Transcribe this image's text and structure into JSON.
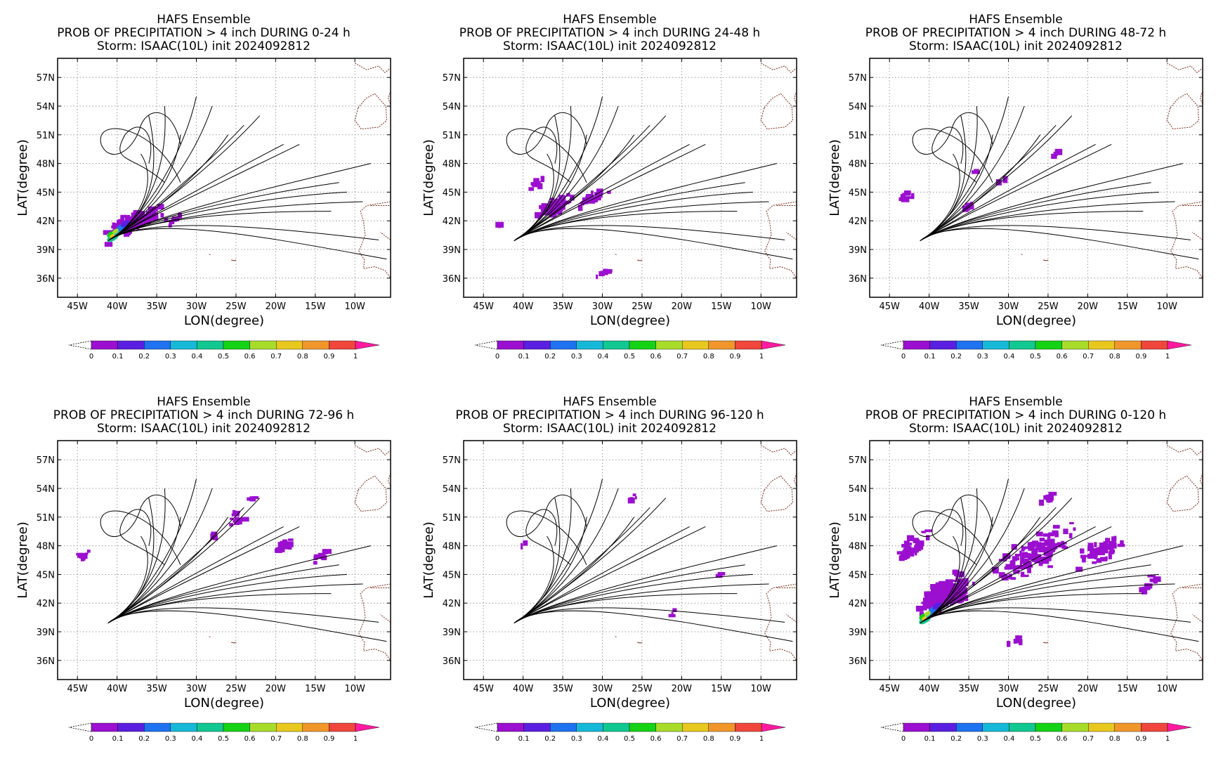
{
  "figure": {
    "model": "HAFS Ensemble",
    "storm_line": "Storm: ISAAC(10L) init 2024092812",
    "xlabel": "LON(degree)",
    "ylabel": "LAT(degree)"
  },
  "panels": [
    {
      "title": "HAFS Ensemble",
      "subtitle": "PROB OF PRECIPITATION > 4 inch DURING  0-24 h",
      "storm": "Storm: ISAAC(10L) init 2024092812",
      "period": "0-24"
    },
    {
      "title": "HAFS Ensemble",
      "subtitle": "PROB OF PRECIPITATION > 4 inch DURING 24-48 h",
      "storm": "Storm: ISAAC(10L) init 2024092812",
      "period": "24-48"
    },
    {
      "title": "HAFS Ensemble",
      "subtitle": "PROB OF PRECIPITATION > 4 inch DURING 48-72 h",
      "storm": "Storm: ISAAC(10L) init 2024092812",
      "period": "48-72"
    },
    {
      "title": "HAFS Ensemble",
      "subtitle": "PROB OF PRECIPITATION > 4 inch DURING 72-96 h",
      "storm": "Storm: ISAAC(10L) init 2024092812",
      "period": "72-96"
    },
    {
      "title": "HAFS Ensemble",
      "subtitle": "PROB OF PRECIPITATION > 4 inch DURING 96-120 h",
      "storm": "Storm: ISAAC(10L) init 2024092812",
      "period": "96-120"
    },
    {
      "title": "HAFS Ensemble",
      "subtitle": "PROB OF PRECIPITATION > 4 inch DURING 0-120 h",
      "storm": "Storm: ISAAC(10L) init 2024092812",
      "period": "0-120"
    }
  ],
  "axes": {
    "lon_ticks": [
      "45W",
      "40W",
      "35W",
      "30W",
      "25W",
      "20W",
      "15W",
      "10W"
    ],
    "lon_values": [
      -45,
      -40,
      -35,
      -30,
      -25,
      -20,
      -15,
      -10
    ],
    "lat_ticks": [
      "57N",
      "54N",
      "51N",
      "48N",
      "45N",
      "42N",
      "39N",
      "36N"
    ],
    "lat_values": [
      57,
      54,
      51,
      48,
      45,
      42,
      39,
      36
    ],
    "lon_range": [
      -47.5,
      -5.5
    ],
    "lat_range": [
      34,
      59
    ],
    "grid": true,
    "grid_style": "dotted"
  },
  "colorbar": {
    "labels": [
      "0",
      "0.1",
      "0.2",
      "0.3",
      "0.4",
      "0.5",
      "0.6",
      "0.7",
      "0.8",
      "0.9",
      "1"
    ],
    "colors": [
      "#9b0fd0",
      "#5a1fe0",
      "#1f72f0",
      "#16b8d8",
      "#10c890",
      "#14d214",
      "#a8dc2a",
      "#e8c81e",
      "#f0962a",
      "#f0463c",
      "#ff2aa0"
    ],
    "under_color": "#ffffff",
    "over_color": "#ff1aa0"
  },
  "tracks": {
    "color": "#000000",
    "member_endpoints_lon": [
      -11,
      -9,
      -13,
      -7,
      -6,
      -19,
      -17,
      -22,
      -26,
      -28,
      -24,
      -30,
      -32,
      -34,
      -36,
      -37,
      -12,
      -8
    ],
    "member_endpoints_lat": [
      45,
      44,
      43,
      40,
      38,
      50,
      50,
      53,
      51,
      54,
      52,
      55,
      51,
      54,
      53,
      49,
      46,
      48
    ],
    "start_lon": -41,
    "start_lat": 40
  },
  "coast_color": "#7a2a14"
}
